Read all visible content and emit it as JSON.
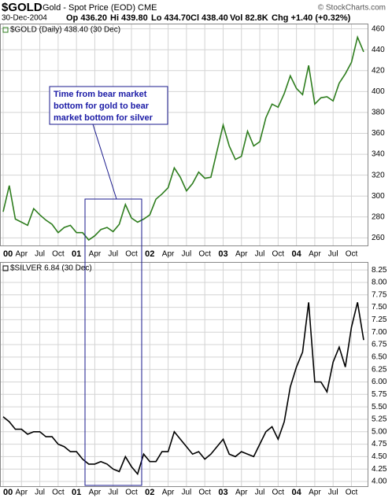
{
  "chart_data": [
    {
      "type": "line",
      "title": "$GOLD",
      "subtitle": "Gold - Spot Price (EOD) CME",
      "date": "30-Dec-2004",
      "quote": [
        "Op 436.20",
        "Hi 439.80",
        "Lo 434.70",
        "Cl 438.40",
        "Vol 82.8K",
        "Chg +1.40 (+0.32%)"
      ],
      "source": "© StockCharts.com",
      "annotation": [
        "Time from bear market",
        "bottom for gold to bear",
        "market bottom for silver"
      ],
      "x": [
        "2000-01",
        "2000-02",
        "2000-03",
        "2000-04",
        "2000-05",
        "2000-06",
        "2000-07",
        "2000-08",
        "2000-09",
        "2000-10",
        "2000-11",
        "2000-12",
        "2001-01",
        "2001-02",
        "2001-03",
        "2001-04",
        "2001-05",
        "2001-06",
        "2001-07",
        "2001-08",
        "2001-09",
        "2001-10",
        "2001-11",
        "2001-12",
        "2002-01",
        "2002-02",
        "2002-03",
        "2002-04",
        "2002-05",
        "2002-06",
        "2002-07",
        "2002-08",
        "2002-09",
        "2002-10",
        "2002-11",
        "2002-12",
        "2003-01",
        "2003-02",
        "2003-03",
        "2003-04",
        "2003-05",
        "2003-06",
        "2003-07",
        "2003-08",
        "2003-09",
        "2003-10",
        "2003-11",
        "2003-12",
        "2004-01",
        "2004-02",
        "2004-03",
        "2004-04",
        "2004-05",
        "2004-06",
        "2004-07",
        "2004-08",
        "2004-09",
        "2004-10",
        "2004-11",
        "2004-12"
      ],
      "series": [
        {
          "name": "$GOLD (Daily) 438.40 (30 Dec)",
          "color": "#2e7d1e",
          "values": [
            285,
            310,
            278,
            275,
            272,
            288,
            282,
            277,
            273,
            265,
            270,
            272,
            265,
            265,
            258,
            262,
            268,
            270,
            266,
            273,
            292,
            279,
            275,
            278,
            282,
            297,
            302,
            308,
            327,
            318,
            305,
            312,
            323,
            317,
            318,
            343,
            368,
            348,
            335,
            338,
            362,
            348,
            352,
            375,
            388,
            385,
            398,
            415,
            403,
            397,
            425,
            388,
            394,
            395,
            391,
            408,
            417,
            428,
            452,
            438
          ]
        }
      ],
      "ylim": [
        252,
        465
      ],
      "yticks": [
        260,
        280,
        300,
        320,
        340,
        360,
        380,
        400,
        420,
        440,
        460
      ],
      "xticks": [
        {
          "value": "2000-01",
          "label": "00"
        },
        {
          "value": "2000-04",
          "label": "Apr"
        },
        {
          "value": "2000-07",
          "label": "Jul"
        },
        {
          "value": "2000-10",
          "label": "Oct"
        },
        {
          "value": "2001-01",
          "label": "01"
        },
        {
          "value": "2001-04",
          "label": "Apr"
        },
        {
          "value": "2001-07",
          "label": "Jul"
        },
        {
          "value": "2001-10",
          "label": "Oct"
        },
        {
          "value": "2002-01",
          "label": "02"
        },
        {
          "value": "2002-04",
          "label": "Apr"
        },
        {
          "value": "2002-07",
          "label": "Jul"
        },
        {
          "value": "2002-10",
          "label": "Oct"
        },
        {
          "value": "2003-01",
          "label": "03"
        },
        {
          "value": "2003-04",
          "label": "Apr"
        },
        {
          "value": "2003-07",
          "label": "Jul"
        },
        {
          "value": "2003-10",
          "label": "Oct"
        },
        {
          "value": "2004-01",
          "label": "04"
        },
        {
          "value": "2004-04",
          "label": "Apr"
        },
        {
          "value": "2004-07",
          "label": "Jul"
        },
        {
          "value": "2004-10",
          "label": "Oct"
        }
      ],
      "grid": true
    },
    {
      "type": "line",
      "x": [
        "2000-01",
        "2000-02",
        "2000-03",
        "2000-04",
        "2000-05",
        "2000-06",
        "2000-07",
        "2000-08",
        "2000-09",
        "2000-10",
        "2000-11",
        "2000-12",
        "2001-01",
        "2001-02",
        "2001-03",
        "2001-04",
        "2001-05",
        "2001-06",
        "2001-07",
        "2001-08",
        "2001-09",
        "2001-10",
        "2001-11",
        "2001-12",
        "2002-01",
        "2002-02",
        "2002-03",
        "2002-04",
        "2002-05",
        "2002-06",
        "2002-07",
        "2002-08",
        "2002-09",
        "2002-10",
        "2002-11",
        "2002-12",
        "2003-01",
        "2003-02",
        "2003-03",
        "2003-04",
        "2003-05",
        "2003-06",
        "2003-07",
        "2003-08",
        "2003-09",
        "2003-10",
        "2003-11",
        "2003-12",
        "2004-01",
        "2004-02",
        "2004-03",
        "2004-04",
        "2004-05",
        "2004-06",
        "2004-07",
        "2004-08",
        "2004-09",
        "2004-10",
        "2004-11",
        "2004-12"
      ],
      "series": [
        {
          "name": "$SILVER 6.84 (30 Dec)",
          "color": "#000000",
          "values": [
            5.3,
            5.2,
            5.05,
            5.05,
            4.95,
            5.0,
            5.0,
            4.9,
            4.9,
            4.75,
            4.7,
            4.6,
            4.6,
            4.45,
            4.35,
            4.35,
            4.4,
            4.35,
            4.25,
            4.2,
            4.5,
            4.3,
            4.15,
            4.55,
            4.4,
            4.4,
            4.6,
            4.6,
            5.0,
            4.85,
            4.7,
            4.55,
            4.6,
            4.45,
            4.55,
            4.7,
            4.85,
            4.55,
            4.5,
            4.6,
            4.55,
            4.5,
            4.75,
            5.0,
            5.1,
            4.85,
            5.2,
            5.9,
            6.3,
            6.6,
            7.6,
            6.0,
            6.0,
            5.8,
            6.4,
            6.7,
            6.3,
            7.1,
            7.6,
            6.84
          ]
        }
      ],
      "ylim": [
        3.89,
        8.41
      ],
      "yticks": [
        {
          "value": 4,
          "label": "4.00"
        },
        {
          "value": 4.25,
          "label": "4.25"
        },
        {
          "value": 4.5,
          "label": "4.50"
        },
        {
          "value": 4.75,
          "label": "4.75"
        },
        {
          "value": 5,
          "label": "5.00"
        },
        {
          "value": 5.25,
          "label": "5.25"
        },
        {
          "value": 5.5,
          "label": "5.50"
        },
        {
          "value": 5.75,
          "label": "5.75"
        },
        {
          "value": 6,
          "label": "6.00"
        },
        {
          "value": 6.25,
          "label": "6.25"
        },
        {
          "value": 6.5,
          "label": "6.50"
        },
        {
          "value": 6.75,
          "label": "6.75"
        },
        {
          "value": 7,
          "label": "7.00"
        },
        {
          "value": 7.25,
          "label": "7.25"
        },
        {
          "value": 7.5,
          "label": "7.50"
        },
        {
          "value": 7.75,
          "label": "7.75"
        },
        {
          "value": 8,
          "label": "8.00"
        },
        {
          "value": 8.25,
          "label": "8.25"
        }
      ],
      "xticks": [
        {
          "value": "2000-01",
          "label": "00"
        },
        {
          "value": "2000-04",
          "label": "Apr"
        },
        {
          "value": "2000-07",
          "label": "Jul"
        },
        {
          "value": "2000-10",
          "label": "Oct"
        },
        {
          "value": "2001-01",
          "label": "01"
        },
        {
          "value": "2001-04",
          "label": "Apr"
        },
        {
          "value": "2001-07",
          "label": "Jul"
        },
        {
          "value": "2001-10",
          "label": "Oct"
        },
        {
          "value": "2002-01",
          "label": "02"
        },
        {
          "value": "2002-04",
          "label": "Apr"
        },
        {
          "value": "2002-07",
          "label": "Jul"
        },
        {
          "value": "2002-10",
          "label": "Oct"
        },
        {
          "value": "2003-01",
          "label": "03"
        },
        {
          "value": "2003-04",
          "label": "Apr"
        },
        {
          "value": "2003-07",
          "label": "Jul"
        },
        {
          "value": "2003-10",
          "label": "Oct"
        },
        {
          "value": "2004-01",
          "label": "04"
        },
        {
          "value": "2004-04",
          "label": "Apr"
        },
        {
          "value": "2004-07",
          "label": "Jul"
        },
        {
          "value": "2004-10",
          "label": "Oct"
        }
      ],
      "grid": true
    }
  ]
}
